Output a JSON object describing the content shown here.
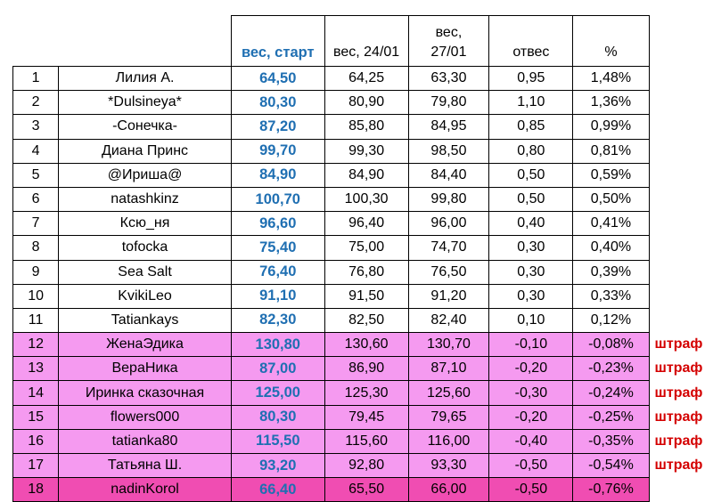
{
  "headers": {
    "start": "вес, старт",
    "w2401": "вес, 24/01",
    "w2701_line1": "вес,",
    "w2701_line2": "27/01",
    "loss": "отвес",
    "pct": "%"
  },
  "penalty_label": "штраф",
  "colors": {
    "start_text": "#1f6fb2",
    "negative_row": "#f59af0",
    "last_row": "#f04db2",
    "penalty_text": "#d40000"
  },
  "rows": [
    {
      "n": "1",
      "name": "Лилия А.",
      "start": "64,50",
      "w1": "64,25",
      "w2": "63,30",
      "loss": "0,95",
      "pct": "1,48%",
      "penalty": ""
    },
    {
      "n": "2",
      "name": "*Dulsineya*",
      "start": "80,30",
      "w1": "80,90",
      "w2": "79,80",
      "loss": "1,10",
      "pct": "1,36%",
      "penalty": ""
    },
    {
      "n": "3",
      "name": "-Сонечка-",
      "start": "87,20",
      "w1": "85,80",
      "w2": "84,95",
      "loss": "0,85",
      "pct": "0,99%",
      "penalty": ""
    },
    {
      "n": "4",
      "name": "Диана Принс",
      "start": "99,70",
      "w1": "99,30",
      "w2": "98,50",
      "loss": "0,80",
      "pct": "0,81%",
      "penalty": ""
    },
    {
      "n": "5",
      "name": "@Ириша@",
      "start": "84,90",
      "w1": "84,90",
      "w2": "84,40",
      "loss": "0,50",
      "pct": "0,59%",
      "penalty": ""
    },
    {
      "n": "6",
      "name": "natashkinz",
      "start": "100,70",
      "w1": "100,30",
      "w2": "99,80",
      "loss": "0,50",
      "pct": "0,50%",
      "penalty": ""
    },
    {
      "n": "7",
      "name": "Ксю_ня",
      "start": "96,60",
      "w1": "96,40",
      "w2": "96,00",
      "loss": "0,40",
      "pct": "0,41%",
      "penalty": ""
    },
    {
      "n": "8",
      "name": "tofocka",
      "start": "75,40",
      "w1": "75,00",
      "w2": "74,70",
      "loss": "0,30",
      "pct": "0,40%",
      "penalty": ""
    },
    {
      "n": "9",
      "name": "Sea Salt",
      "start": "76,40",
      "w1": "76,80",
      "w2": "76,50",
      "loss": "0,30",
      "pct": "0,39%",
      "penalty": ""
    },
    {
      "n": "10",
      "name": "KvikiLeo",
      "start": "91,10",
      "w1": "91,50",
      "w2": "91,20",
      "loss": "0,30",
      "pct": "0,33%",
      "penalty": ""
    },
    {
      "n": "11",
      "name": "Tatiankays",
      "start": "82,30",
      "w1": "82,50",
      "w2": "82,40",
      "loss": "0,10",
      "pct": "0,12%",
      "penalty": ""
    },
    {
      "n": "12",
      "name": "ЖенаЭдика",
      "start": "130,80",
      "w1": "130,60",
      "w2": "130,70",
      "loss": "-0,10",
      "pct": "-0,08%",
      "penalty": "штраф"
    },
    {
      "n": "13",
      "name": "ВераНика",
      "start": "87,00",
      "w1": "86,90",
      "w2": "87,10",
      "loss": "-0,20",
      "pct": "-0,23%",
      "penalty": "штраф"
    },
    {
      "n": "14",
      "name": "Иринка сказочная",
      "start": "125,00",
      "w1": "125,30",
      "w2": "125,60",
      "loss": "-0,30",
      "pct": "-0,24%",
      "penalty": "штраф"
    },
    {
      "n": "15",
      "name": "flowers000",
      "start": "80,30",
      "w1": "79,45",
      "w2": "79,65",
      "loss": "-0,20",
      "pct": "-0,25%",
      "penalty": "штраф"
    },
    {
      "n": "16",
      "name": "tatianka80",
      "start": "115,50",
      "w1": "115,60",
      "w2": "116,00",
      "loss": "-0,40",
      "pct": "-0,35%",
      "penalty": "штраф"
    },
    {
      "n": "17",
      "name": "Татьяна Ш.",
      "start": "93,20",
      "w1": "92,80",
      "w2": "93,30",
      "loss": "-0,50",
      "pct": "-0,54%",
      "penalty": "штраф"
    },
    {
      "n": "18",
      "name": "nadinKorol",
      "start": "66,40",
      "w1": "65,50",
      "w2": "66,00",
      "loss": "-0,50",
      "pct": "-0,76%",
      "penalty": ""
    }
  ]
}
